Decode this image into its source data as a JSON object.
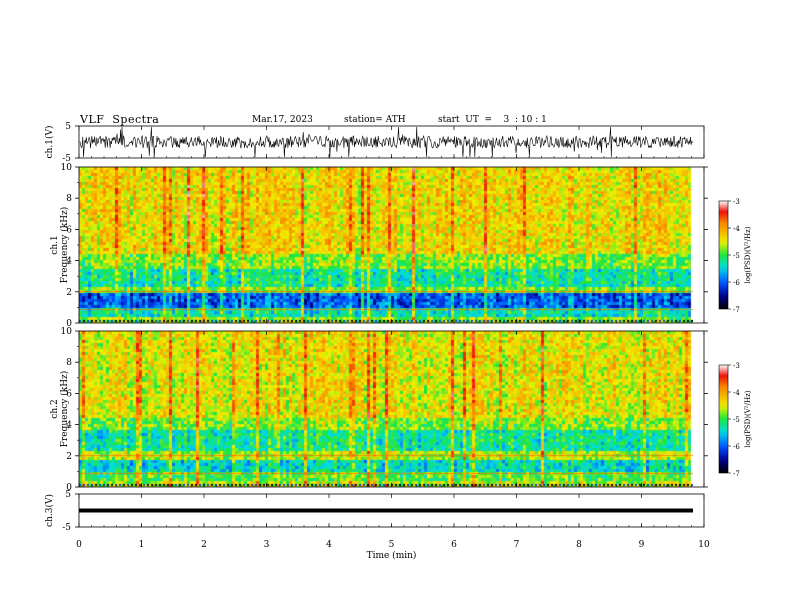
{
  "header": {
    "title": "VLF  Spectra",
    "date": "Mar.17, 2023",
    "station": "station= ATH",
    "start_ut": "start  UT  =    3  : 10 : 1"
  },
  "chart_data": [
    {
      "type": "line",
      "panel": "ch1-waveform",
      "ylabel": "ch.1(V)",
      "ylim": [
        -5,
        5
      ],
      "yticks": [
        "5",
        "-5"
      ],
      "xlim": [
        0,
        10
      ],
      "baseline": 0,
      "color": "#000000"
    },
    {
      "type": "heatmap",
      "panel": "ch1-spectrogram",
      "ylabel_line1": "ch.1",
      "ylabel_line2": "Frequency (kHz)",
      "ylim": [
        0,
        10
      ],
      "yticks": [
        "0",
        "2",
        "4",
        "6",
        "8",
        "10"
      ],
      "xlim": [
        0,
        9.8
      ],
      "colorbar": {
        "label": "log(PSD)(V²/Hz)",
        "range": [
          -7,
          -3
        ],
        "ticks": [
          "-3",
          "-4",
          "-5",
          "-6",
          "-7"
        ]
      }
    },
    {
      "type": "heatmap",
      "panel": "ch2-spectrogram",
      "ylabel_line1": "ch.2",
      "ylabel_line2": "Frequency (kHz)",
      "ylim": [
        0,
        10
      ],
      "yticks": [
        "0",
        "2",
        "4",
        "6",
        "8",
        "10"
      ],
      "xlim": [
        0,
        9.8
      ],
      "colorbar": {
        "label": "log(PSD)(V²/Hz)",
        "range": [
          -7,
          -3
        ],
        "ticks": [
          "-3",
          "-4",
          "-5",
          "-6",
          "-7"
        ]
      }
    },
    {
      "type": "line",
      "panel": "ch3-waveform",
      "ylabel": "ch.3(V)",
      "ylim": [
        -5,
        5
      ],
      "yticks": [
        "5",
        "-5"
      ],
      "xlim": [
        0,
        10
      ],
      "baseline": 0,
      "color": "#000000"
    }
  ],
  "x_axis": {
    "label": "Time  (min)",
    "range": [
      0,
      10
    ],
    "ticks": [
      "0",
      "1",
      "2",
      "3",
      "4",
      "5",
      "6",
      "7",
      "8",
      "9",
      "10"
    ]
  }
}
